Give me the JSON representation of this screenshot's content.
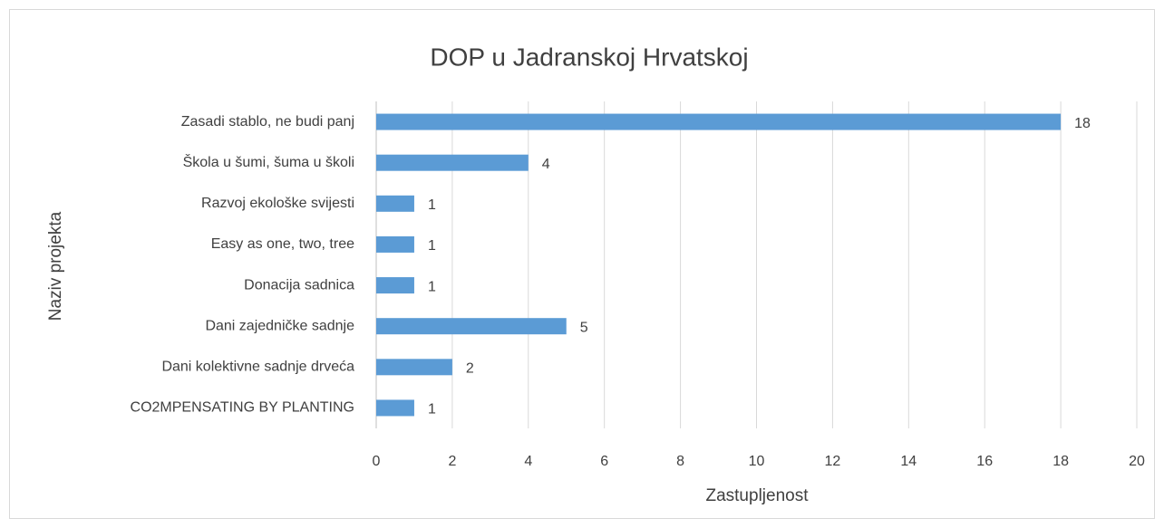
{
  "chart_data": {
    "type": "barh",
    "title": "DOP u Jadranskoj Hrvatskoj",
    "x_label": "Zastupljenost",
    "y_label": "Naziv projekta",
    "categories": [
      "Zasadi stablo, ne budi panj",
      "Škola u šumi, šuma u školi",
      "Razvoj ekološke svijesti",
      "Easy as one, two, tree",
      "Donacija sadnica",
      "Dani zajedničke sadnje",
      "Dani kolektivne sadnje drveća",
      "CO2MPENSATING BY PLANTING"
    ],
    "values": [
      18,
      4,
      1,
      1,
      1,
      5,
      2,
      1
    ],
    "color": "#5b9bd5",
    "xlim": [
      0,
      20
    ],
    "xticks": [
      0,
      2,
      4,
      6,
      8,
      10,
      12,
      14,
      16,
      18,
      20
    ],
    "grid": true
  }
}
